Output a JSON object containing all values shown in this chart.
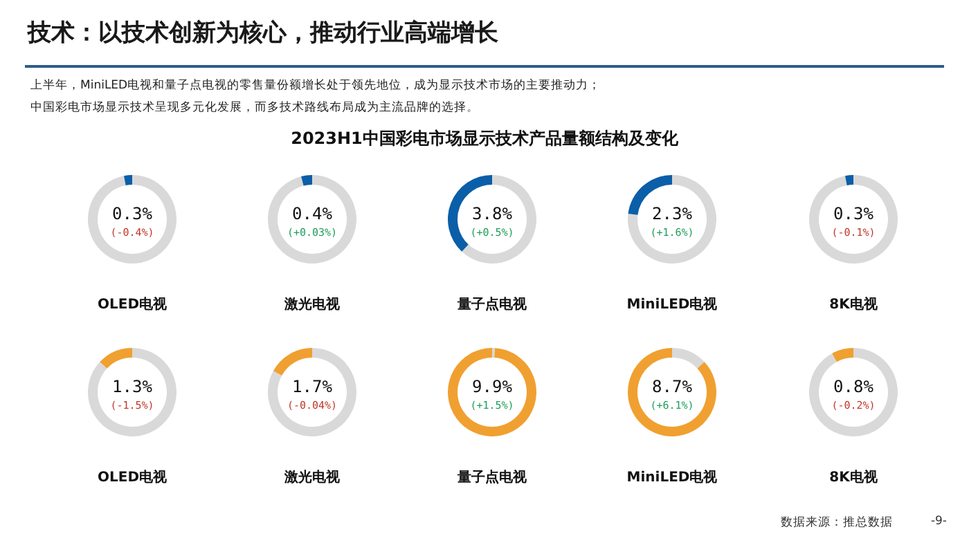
{
  "chart_data": [
    {
      "type": "other",
      "title": "技术：以技术创新为核心，推动行业高端增长",
      "subtitle": "2023H1中国彩电市场显示技术产品量额结构及变化",
      "annotations": [
        "上半年，MiniLED电视和量子点电视的零售量份额增长处于领先地位，成为显示技术市场的主要推动力；",
        "中国彩电市场显示技术呈现多元化发展，而多技术路线布局成为主流品牌的选择。",
        "数据来源：推总数据",
        "-9-"
      ]
    },
    {
      "type": "donut",
      "title": "OLED电视",
      "categories": [
        null,
        null
      ],
      "values": [
        0.3,
        9.7
      ],
      "colors": [
        "#0b5ea8",
        "#d9d9d9"
      ],
      "value_labels": [
        "0.3%",
        null
      ],
      "annotations": [
        "(-0.4%)"
      ]
    },
    {
      "type": "donut",
      "title": "激光电视",
      "categories": [
        null,
        null
      ],
      "values": [
        0.4,
        9.6
      ],
      "colors": [
        "#0b5ea8",
        "#d9d9d9"
      ],
      "value_labels": [
        "0.4%",
        null
      ],
      "annotations": [
        "(+0.03%)"
      ]
    },
    {
      "type": "donut",
      "title": "量子点电视",
      "categories": [
        null,
        null
      ],
      "values": [
        3.8,
        6.2
      ],
      "colors": [
        "#0b5ea8",
        "#d9d9d9"
      ],
      "value_labels": [
        "3.8%",
        null
      ],
      "annotations": [
        "(+0.5%)"
      ]
    },
    {
      "type": "donut",
      "title": "MiniLED电视",
      "categories": [
        null,
        null
      ],
      "values": [
        2.3,
        7.7
      ],
      "colors": [
        "#0b5ea8",
        "#d9d9d9"
      ],
      "value_labels": [
        "2.3%",
        null
      ],
      "annotations": [
        "(+1.6%)"
      ]
    },
    {
      "type": "donut",
      "title": "8K电视",
      "categories": [
        null,
        null
      ],
      "values": [
        0.3,
        9.7
      ],
      "colors": [
        "#0b5ea8",
        "#d9d9d9"
      ],
      "value_labels": [
        "0.3%",
        null
      ],
      "annotations": [
        "(-0.1%)"
      ]
    },
    {
      "type": "donut",
      "title": "OLED电视",
      "categories": [
        null,
        null
      ],
      "values": [
        1.3,
        8.7
      ],
      "colors": [
        "#f0a030",
        "#d9d9d9"
      ],
      "value_labels": [
        "1.3%",
        null
      ],
      "annotations": [
        "(-1.5%)"
      ]
    },
    {
      "type": "donut",
      "title": "激光电视",
      "categories": [
        null,
        null
      ],
      "values": [
        1.7,
        8.3
      ],
      "colors": [
        "#f0a030",
        "#d9d9d9"
      ],
      "value_labels": [
        "1.7%",
        null
      ],
      "annotations": [
        "(-0.04%)"
      ]
    },
    {
      "type": "donut",
      "title": "量子点电视",
      "categories": [
        null,
        null
      ],
      "values": [
        9.9,
        0.1
      ],
      "colors": [
        "#f0a030",
        "#d9d9d9"
      ],
      "value_labels": [
        "9.9%",
        null
      ],
      "annotations": [
        "(+1.5%)"
      ]
    },
    {
      "type": "donut",
      "title": "MiniLED电视",
      "categories": [
        null,
        null
      ],
      "values": [
        8.7,
        1.3
      ],
      "colors": [
        "#f0a030",
        "#d9d9d9"
      ],
      "value_labels": [
        "8.7%",
        null
      ],
      "annotations": [
        "(+6.1%)"
      ]
    },
    {
      "type": "donut",
      "title": "8K电视",
      "categories": [
        null,
        null
      ],
      "values": [
        0.8,
        9.2
      ],
      "colors": [
        "#f0a030",
        "#d9d9d9"
      ],
      "value_labels": [
        "0.8%",
        null
      ],
      "annotations": [
        "(-0.2%)"
      ]
    }
  ]
}
